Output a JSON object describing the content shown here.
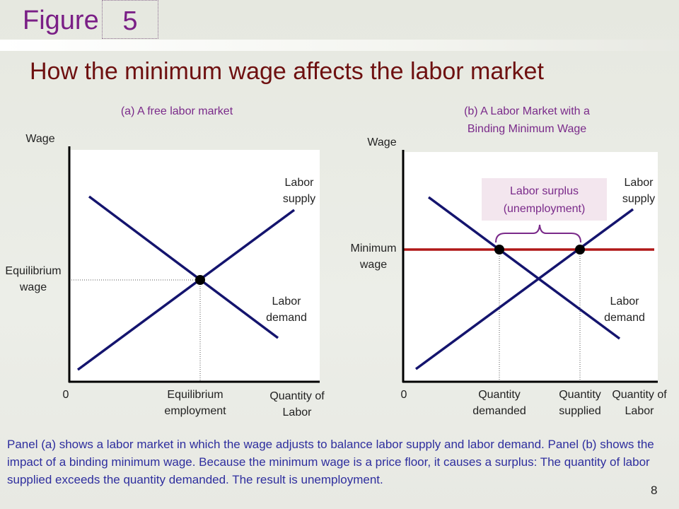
{
  "header": {
    "figure_label": "Figure",
    "figure_number": "5",
    "title": "How the minimum wage affects the labor market"
  },
  "panel_a": {
    "title": "(a) A free labor market",
    "y_axis": "Wage",
    "origin": "0",
    "supply": "Labor supply",
    "demand": "Labor demand",
    "eq_wage": "Equilibrium wage",
    "eq_employment": "Equilibrium employment",
    "x_axis": "Quantity of Labor"
  },
  "panel_b": {
    "title_line1": "(b) A Labor Market with a",
    "title_line2": "Binding Minimum Wage",
    "y_axis": "Wage",
    "origin": "0",
    "supply": "Labor supply",
    "demand": "Labor demand",
    "min_wage": "Minimum wage",
    "surplus_line1": "Labor surplus",
    "surplus_line2": "(unemployment)",
    "q_demanded": "Quantity demanded",
    "q_supplied": "Quantity supplied",
    "x_axis": "Quantity of Labor"
  },
  "caption": "Panel (a) shows a labor market in which the wage adjusts to balance labor supply and labor demand. Panel (b) shows the impact of a binding minimum wage. Because the minimum wage is a price floor, it causes a surplus: The quantity of labor supplied exceeds the quantity demanded. The result is unemployment.",
  "page_number": "8",
  "colors": {
    "curves": "#14146e",
    "min_wage_line": "#b01818",
    "title": "#6e1010",
    "figure": "#7a1f86",
    "caption": "#2e2e9e"
  }
}
